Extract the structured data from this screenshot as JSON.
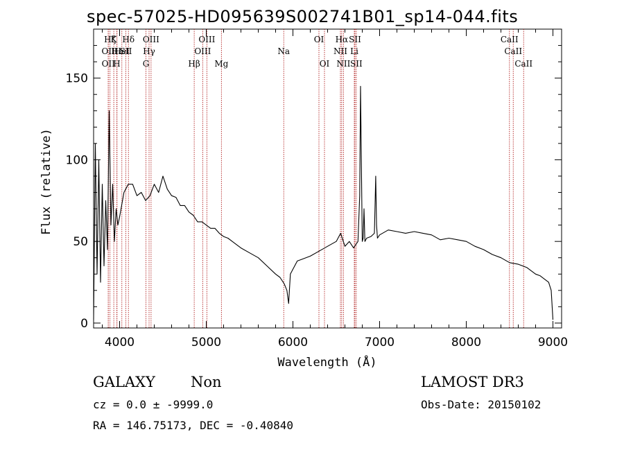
{
  "title": "spec-57025-HD095639S002741B01_sp14-044.fits",
  "footer": {
    "object_class": "GALAXY",
    "subclass": "Non",
    "cz": "cz = 0.0 ± -9999.0",
    "coords": "RA = 146.75173, DEC =  -0.40840",
    "survey": "LAMOST DR3",
    "obs_date": "Obs-Date: 20150102"
  },
  "chart_data": {
    "type": "line",
    "title": "spec-57025-HD095639S002741B01_sp14-044.fits",
    "xlabel": "Wavelength (Å)",
    "ylabel": "Flux (relative)",
    "xlim": [
      3700,
      9100
    ],
    "ylim": [
      -3,
      180
    ],
    "xticks": [
      4000,
      5000,
      6000,
      7000,
      8000,
      9000
    ],
    "yticks": [
      0,
      50,
      100,
      150
    ],
    "grid": false,
    "line_color": "#000000",
    "marker_color": "#b22222",
    "spectrum": {
      "x": [
        3700,
        3720,
        3740,
        3760,
        3780,
        3800,
        3820,
        3840,
        3860,
        3880,
        3900,
        3920,
        3940,
        3960,
        3980,
        4000,
        4050,
        4100,
        4150,
        4200,
        4250,
        4300,
        4350,
        4400,
        4450,
        4500,
        4550,
        4600,
        4650,
        4700,
        4750,
        4800,
        4850,
        4900,
        4950,
        5000,
        5050,
        5100,
        5150,
        5200,
        5250,
        5300,
        5350,
        5400,
        5500,
        5600,
        5700,
        5800,
        5850,
        5900,
        5930,
        5950,
        5970,
        6000,
        6050,
        6100,
        6200,
        6300,
        6400,
        6500,
        6550,
        6600,
        6650,
        6700,
        6750,
        6770,
        6780,
        6790,
        6800,
        6810,
        6820,
        6830,
        6850,
        6900,
        6940,
        6955,
        6965,
        6975,
        7000,
        7100,
        7200,
        7300,
        7400,
        7500,
        7600,
        7700,
        7800,
        7900,
        8000,
        8100,
        8200,
        8300,
        8400,
        8500,
        8600,
        8700,
        8800,
        8850,
        8900,
        8950,
        8980,
        9000
      ],
      "y": [
        2,
        110,
        30,
        100,
        25,
        85,
        35,
        75,
        45,
        130,
        60,
        85,
        50,
        70,
        60,
        65,
        80,
        85,
        85,
        78,
        80,
        75,
        78,
        85,
        80,
        90,
        82,
        78,
        77,
        72,
        72,
        68,
        66,
        62,
        62,
        60,
        58,
        58,
        55,
        53,
        52,
        50,
        48,
        46,
        43,
        40,
        35,
        30,
        28,
        24,
        20,
        12,
        30,
        33,
        38,
        39,
        41,
        44,
        47,
        50,
        55,
        47,
        50,
        46,
        50,
        78,
        145,
        95,
        50,
        52,
        70,
        50,
        52,
        53,
        55,
        90,
        60,
        52,
        54,
        57,
        56,
        55,
        56,
        55,
        54,
        51,
        52,
        51,
        50,
        47,
        45,
        42,
        40,
        37,
        36,
        34,
        30,
        29,
        27,
        25,
        20,
        2
      ]
    },
    "lines": [
      {
        "wl": 3869,
        "label": "OII",
        "row": 2
      },
      {
        "wl": 3870,
        "label": "OII",
        "row": 3
      },
      {
        "wl": 3889,
        "label": "Hζ",
        "row": 1
      },
      {
        "wl": 3970,
        "label": "Hε",
        "row": 2
      },
      {
        "wl": 3933,
        "label": "K",
        "row": 1
      },
      {
        "wl": 4026,
        "label": "HeI",
        "row": 2
      },
      {
        "wl": 3968,
        "label": "H",
        "row": 3
      },
      {
        "wl": 4102,
        "label": "Hδ",
        "row": 1
      },
      {
        "wl": 4072,
        "label": "SII",
        "row": 2
      },
      {
        "wl": 4340,
        "label": "Hγ",
        "row": 2
      },
      {
        "wl": 4304,
        "label": "G",
        "row": 3
      },
      {
        "wl": 4363,
        "label": "OIII",
        "row": 1
      },
      {
        "wl": 4861,
        "label": "Hβ",
        "row": 3
      },
      {
        "wl": 4959,
        "label": "OIII",
        "row": 2
      },
      {
        "wl": 5007,
        "label": "OIII",
        "row": 1
      },
      {
        "wl": 5175,
        "label": "Mg",
        "row": 3
      },
      {
        "wl": 5894,
        "label": "Na",
        "row": 2
      },
      {
        "wl": 6300,
        "label": "OI",
        "row": 1
      },
      {
        "wl": 6364,
        "label": "OI",
        "row": 3
      },
      {
        "wl": 6548,
        "label": "NII",
        "row": 2
      },
      {
        "wl": 6563,
        "label": "Hα",
        "row": 1
      },
      {
        "wl": 6583,
        "label": "NII",
        "row": 3
      },
      {
        "wl": 6708,
        "label": "Li",
        "row": 2
      },
      {
        "wl": 6716,
        "label": "SII",
        "row": 1
      },
      {
        "wl": 6731,
        "label": "SII",
        "row": 3
      },
      {
        "wl": 8498,
        "label": "CaII",
        "row": 1
      },
      {
        "wl": 8542,
        "label": "CaII",
        "row": 2
      },
      {
        "wl": 8662,
        "label": "CaII",
        "row": 3
      }
    ]
  }
}
